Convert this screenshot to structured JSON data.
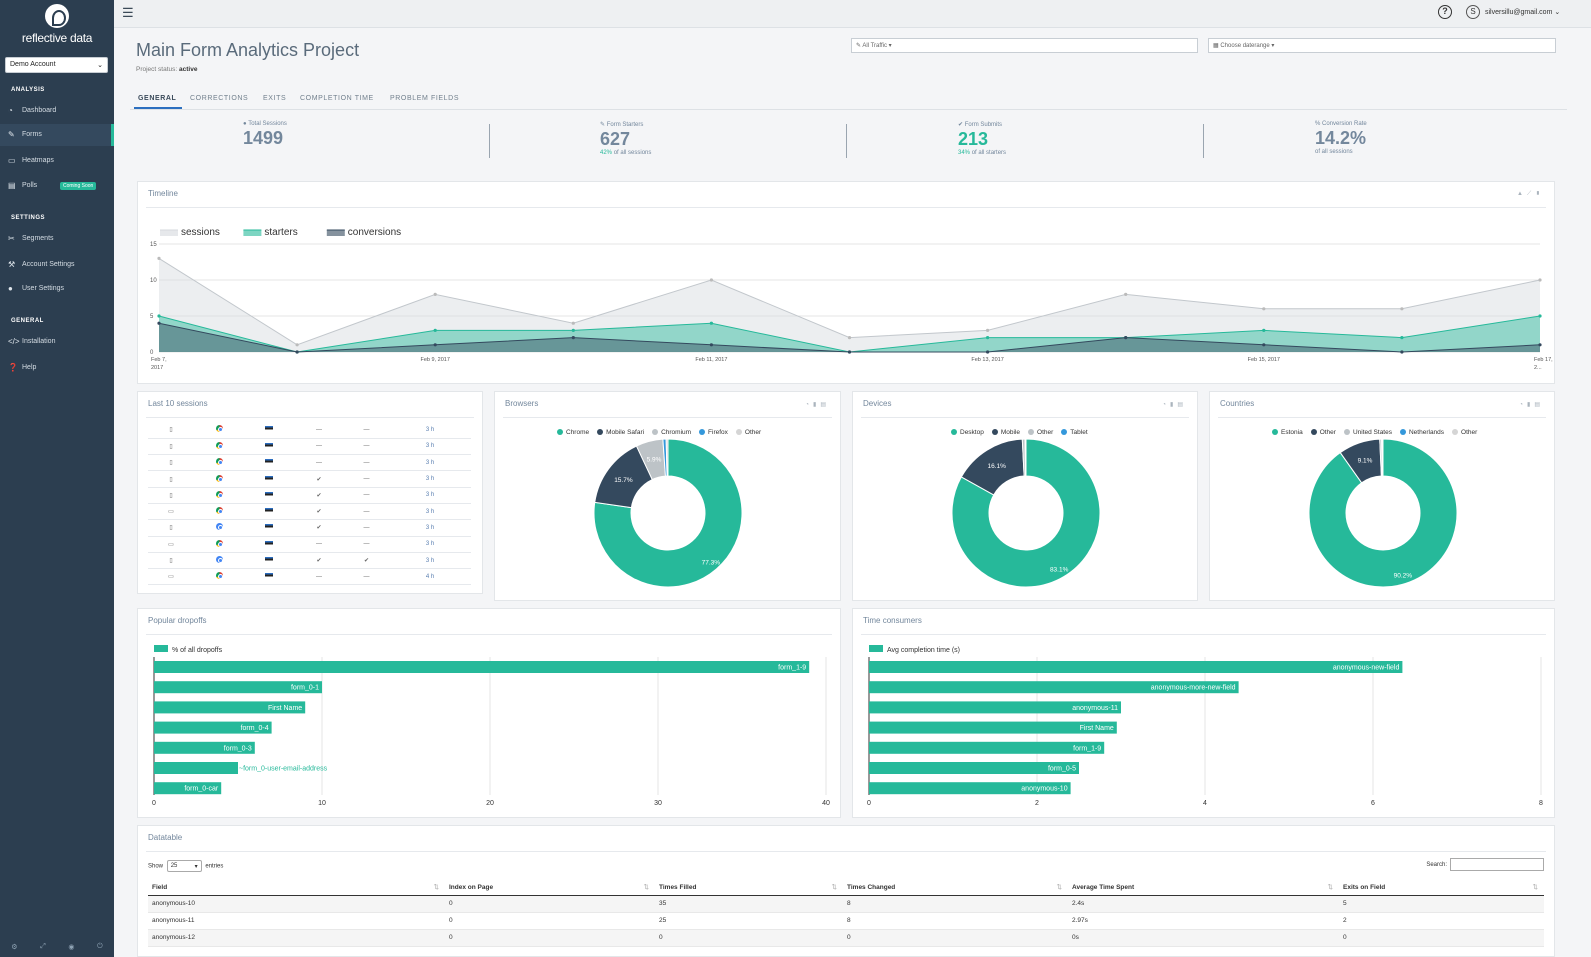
{
  "brand": {
    "name": "reflective data"
  },
  "sidebar": {
    "account": "Demo Account",
    "sections": {
      "analysis": "ANALYSIS",
      "settings": "SETTINGS",
      "general": "GENERAL"
    },
    "items": [
      {
        "label": "Dashboard",
        "icon": "dashboard-icon"
      },
      {
        "label": "Forms",
        "icon": "forms-icon"
      },
      {
        "label": "Heatmaps",
        "icon": "monitor-icon"
      },
      {
        "label": "Polls",
        "icon": "poll-icon",
        "badge": "Coming Soon"
      },
      {
        "label": "Segments",
        "icon": "segments-icon"
      },
      {
        "label": "Account Settings",
        "icon": "wrench-icon"
      },
      {
        "label": "User Settings",
        "icon": "user-icon"
      },
      {
        "label": "Installation",
        "icon": "code-icon"
      },
      {
        "label": "Help",
        "icon": "help-circle-icon"
      }
    ]
  },
  "topbar": {
    "user_initial": "S",
    "user_email": "silversillu@gmail.com"
  },
  "page": {
    "title": "Main Form Analytics Project",
    "status_label": "Project status:",
    "status_value": "active",
    "traffic_filter": "All Traffic",
    "daterange_placeholder": "Choose daterange"
  },
  "tabs": [
    "GENERAL",
    "CORRECTIONS",
    "EXITS",
    "COMPLETION TIME",
    "PROBLEM FIELDS"
  ],
  "kpis": [
    {
      "label": "Total Sessions",
      "value": "1499",
      "sub_pct": "",
      "sub": "",
      "color": "#73879c"
    },
    {
      "label": "Form Starters",
      "value": "627",
      "sub_pct": "42%",
      "sub": "of all sessions",
      "color": "#73879c"
    },
    {
      "label": "Form Submits",
      "value": "213",
      "sub_pct": "34%",
      "sub": "of all starters",
      "color": "#26b99a"
    },
    {
      "label": "% Conversion Rate",
      "value": "14.2%",
      "sub_pct": "",
      "sub": "of all sessions",
      "color": "#73879c"
    }
  ],
  "timeline": {
    "title": "Timeline",
    "chart_data": {
      "type": "area",
      "x": [
        "Feb 7, 2017",
        "Feb 8, 2017",
        "Feb 9, 2017",
        "Feb 10, 2017",
        "Feb 11, 2017",
        "Feb 12, 2017",
        "Feb 13, 2017",
        "Feb 14, 2017",
        "Feb 15, 2017",
        "Feb 16, 2017",
        "Feb 17, 2017"
      ],
      "tick_labels": [
        "Feb 7, 2017",
        "Feb 9, 2017",
        "Feb 11, 2017",
        "Feb 13, 2017",
        "Feb 15, 2017",
        "Feb 17, 2..."
      ],
      "series": [
        {
          "name": "sessions",
          "color": "#d5d9dd",
          "values": [
            13,
            1,
            8,
            4,
            10,
            2,
            3,
            8,
            6,
            6,
            10
          ]
        },
        {
          "name": "starters",
          "color": "#26b99a",
          "values": [
            5,
            0,
            3,
            3,
            4,
            0,
            2,
            2,
            3,
            2,
            5
          ]
        },
        {
          "name": "conversions",
          "color": "#34495e",
          "values": [
            4,
            0,
            1,
            2,
            1,
            0,
            0,
            2,
            1,
            0,
            1
          ]
        }
      ],
      "ylim": [
        0,
        15
      ],
      "yticks": [
        "15",
        "10",
        "5",
        "0"
      ]
    }
  },
  "last_sessions": {
    "title": "Last 10 sessions",
    "rows": [
      {
        "device": "▯",
        "browser": "chrome",
        "check1": "—",
        "check2": "—",
        "time": "3 h"
      },
      {
        "device": "▯",
        "browser": "chrome",
        "check1": "—",
        "check2": "—",
        "time": "3 h"
      },
      {
        "device": "▯",
        "browser": "chrome",
        "check1": "—",
        "check2": "—",
        "time": "3 h"
      },
      {
        "device": "▯",
        "browser": "chrome",
        "check1": "✔",
        "check2": "—",
        "time": "3 h"
      },
      {
        "device": "▯",
        "browser": "chrome",
        "check1": "✔",
        "check2": "—",
        "time": "3 h"
      },
      {
        "device": "▭",
        "browser": "chrome",
        "check1": "✔",
        "check2": "—",
        "time": "3 h"
      },
      {
        "device": "▯",
        "browser": "chromium",
        "check1": "✔",
        "check2": "—",
        "time": "3 h"
      },
      {
        "device": "▭",
        "browser": "chrome",
        "check1": "—",
        "check2": "—",
        "time": "3 h"
      },
      {
        "device": "▯",
        "browser": "chromium",
        "check1": "✔",
        "check2": "✔",
        "time": "3 h"
      },
      {
        "device": "▭",
        "browser": "chrome",
        "check1": "—",
        "check2": "—",
        "time": "4 h"
      }
    ]
  },
  "donuts": [
    {
      "title": "Browsers",
      "chart_data": {
        "type": "pie",
        "labels": [
          "Chrome",
          "Mobile Safari",
          "Chromium",
          "Firefox",
          "Other"
        ],
        "values": [
          77.3,
          15.7,
          5.9,
          0.7,
          0.4
        ],
        "colors": [
          "#26b99a",
          "#34495e",
          "#bdc3c7",
          "#3498db",
          "#d5d5d5"
        ],
        "data_labels": [
          "77.3%",
          "15.7%",
          "5.9%",
          "",
          ""
        ]
      }
    },
    {
      "title": "Devices",
      "chart_data": {
        "type": "pie",
        "labels": [
          "Desktop",
          "Mobile",
          "Other",
          "Tablet"
        ],
        "values": [
          83.1,
          16.1,
          0.6,
          0.2
        ],
        "colors": [
          "#26b99a",
          "#34495e",
          "#bdc3c7",
          "#3498db"
        ],
        "data_labels": [
          "83.1%",
          "16.1%",
          "",
          ""
        ]
      }
    },
    {
      "title": "Countries",
      "chart_data": {
        "type": "pie",
        "labels": [
          "Estonia",
          "Other",
          "United States",
          "Netherlands",
          "Other"
        ],
        "values": [
          90.2,
          9.1,
          0.4,
          0.2,
          0.1
        ],
        "colors": [
          "#26b99a",
          "#34495e",
          "#bdc3c7",
          "#3498db",
          "#d5d5d5"
        ],
        "data_labels": [
          "90.2%",
          "9.1%",
          "",
          "",
          ""
        ]
      }
    }
  ],
  "dropoffs": {
    "title": "Popular dropoffs",
    "chart_data": {
      "type": "bar",
      "legend": "% of all dropoffs",
      "categories": [
        "form_1-9",
        "form_0-1",
        "First Name",
        "form_0-4",
        "form_0-3",
        "~form_0-user-email-address",
        "form_0-car"
      ],
      "values": [
        39,
        10,
        9,
        7,
        6,
        5,
        4
      ],
      "xlim": [
        0,
        40
      ],
      "xticks": [
        0,
        10,
        20,
        30,
        40
      ],
      "color": "#26b99a"
    }
  },
  "time_consumers": {
    "title": "Time consumers",
    "chart_data": {
      "type": "bar",
      "legend": "Avg completion time (s)",
      "categories": [
        "anonymous-new-field",
        "anonymous-more-new-field",
        "anonymous-11",
        "First Name",
        "form_1-9",
        "form_0-5",
        "anonymous-10"
      ],
      "values": [
        6.35,
        4.4,
        3.0,
        2.95,
        2.8,
        2.5,
        2.4
      ],
      "xlim": [
        0,
        8
      ],
      "xticks": [
        0,
        2,
        4,
        6,
        8
      ],
      "color": "#26b99a"
    }
  },
  "datatable": {
    "title": "Datatable",
    "show_label": "Show",
    "page_size": "25",
    "entries_label": "entries",
    "search_label": "Search:",
    "columns": [
      "Field",
      "Index on Page",
      "Times Filled",
      "Times Changed",
      "Average Time Spent",
      "Exits on Field"
    ],
    "rows": [
      [
        "anonymous-10",
        "0",
        "35",
        "8",
        "2.4s",
        "5"
      ],
      [
        "anonymous-11",
        "0",
        "25",
        "8",
        "2.97s",
        "2"
      ],
      [
        "anonymous-12",
        "0",
        "0",
        "0",
        "0s",
        "0"
      ]
    ]
  }
}
